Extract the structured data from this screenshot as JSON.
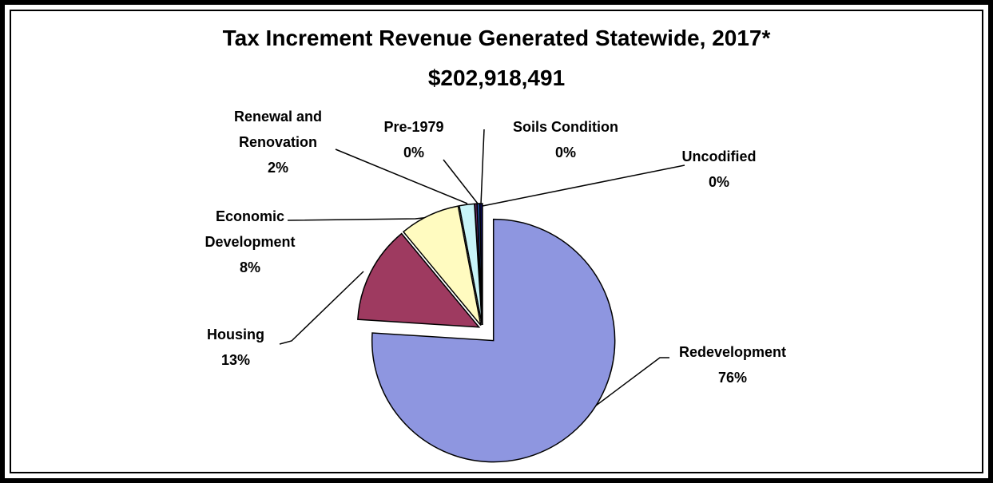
{
  "chart_data": {
    "type": "pie",
    "title": "Tax Increment Revenue Generated Statewide, 2017*",
    "subtitle": "$202,918,491",
    "categories": [
      "Redevelopment",
      "Housing",
      "Economic Development",
      "Renewal and Renovation",
      "Pre-1979",
      "Soils Condition",
      "Uncodified"
    ],
    "values": [
      76,
      13,
      8,
      2,
      0.3,
      0.35,
      0.35
    ],
    "value_labels": [
      "76%",
      "13%",
      "8%",
      "2%",
      "0%",
      "0%",
      "0%"
    ],
    "colors": [
      "#8e96e0",
      "#9e3a60",
      "#fffbc0",
      "#c8f4f8",
      "#6b2b6b",
      "#1f4fa0",
      "#0a0a50"
    ]
  }
}
